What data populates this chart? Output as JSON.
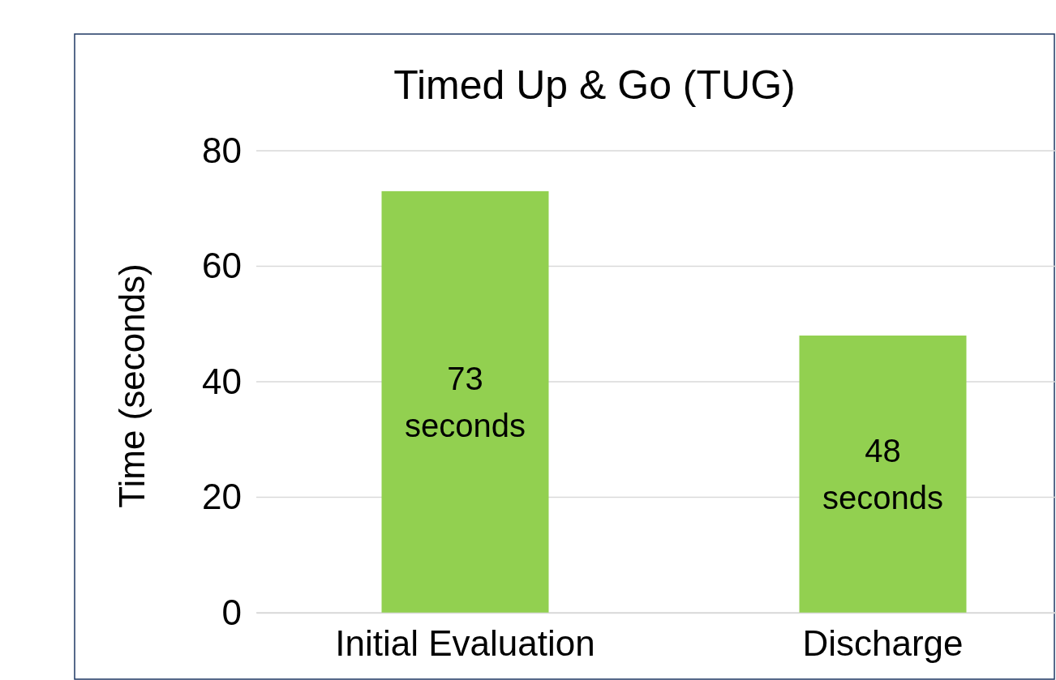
{
  "chart_data": {
    "type": "bar",
    "title": "Timed Up & Go (TUG)",
    "ylabel": "Time (seconds)",
    "categories": [
      "Initial Evaluation",
      "Discharge"
    ],
    "values": [
      73,
      48
    ],
    "color": "#92d050",
    "value_labels": [
      "73 seconds",
      "48 seconds"
    ],
    "ylim": [
      0,
      80
    ],
    "yticks": [
      0,
      20,
      40,
      60,
      80
    ],
    "grid": "y"
  }
}
